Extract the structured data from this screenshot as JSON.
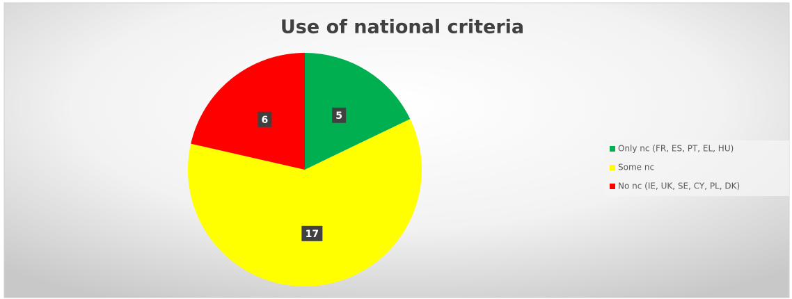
{
  "chart_data": {
    "type": "pie",
    "title": "Use of national criteria",
    "categories": [
      "Only nc (FR, ES, PT, EL, HU)",
      "Some nc",
      "No nc (IE, UK, SE, CY, PL, DK)"
    ],
    "values": [
      5,
      17,
      6
    ],
    "colors": [
      "#00b050",
      "#ffff00",
      "#ff0000"
    ],
    "legend": "right"
  }
}
